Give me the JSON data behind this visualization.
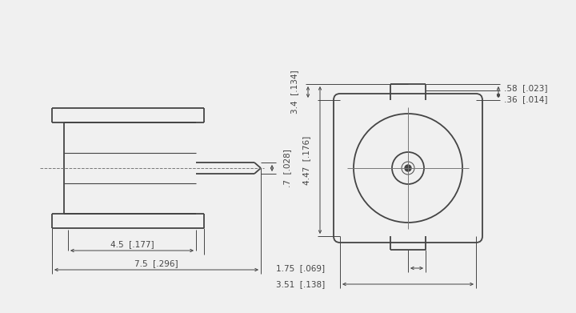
{
  "bg_color": "#f0f0f0",
  "line_color": "#444444",
  "dim_color": "#444444",
  "lw": 1.3,
  "tlw": 0.8,
  "dlw": 0.7,
  "fs": 7.5,
  "annotations": {
    "dim_7": ".7  [.028]",
    "dim_45": "4.5  [.177]",
    "dim_75": "7.5  [.296]",
    "dim_34": "3.4  [.134]",
    "dim_447": "4.47  [.176]",
    "dim_58": ".58  [.023]",
    "dim_36": ".36  [.014]",
    "dim_175": "1.75  [.069]",
    "dim_351": "3.51  [.138]"
  }
}
